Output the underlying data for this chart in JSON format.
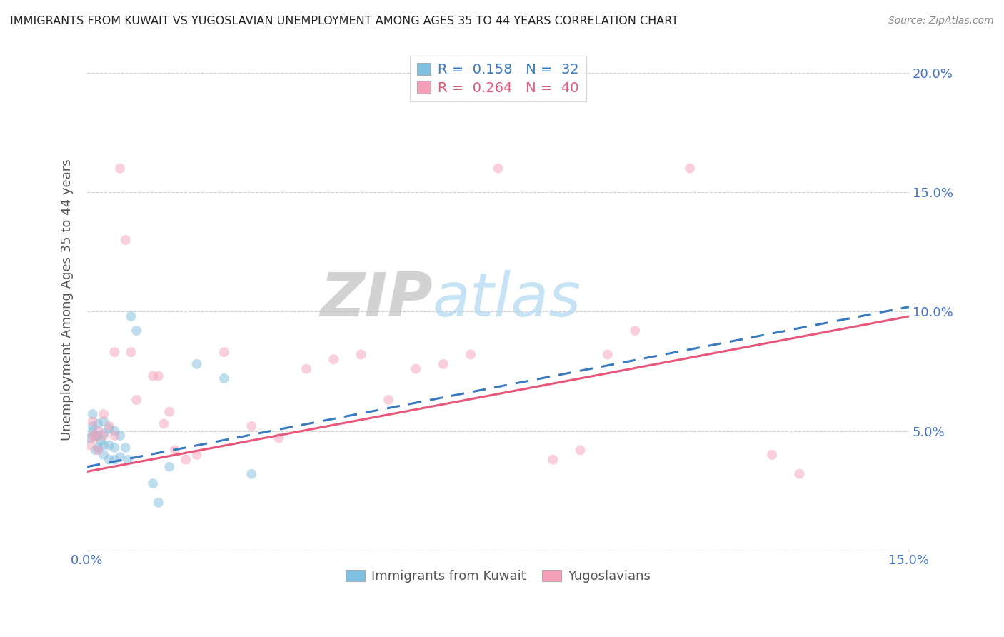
{
  "title": "IMMIGRANTS FROM KUWAIT VS YUGOSLAVIAN UNEMPLOYMENT AMONG AGES 35 TO 44 YEARS CORRELATION CHART",
  "source": "Source: ZipAtlas.com",
  "ylabel": "Unemployment Among Ages 35 to 44 years",
  "xlim": [
    0,
    0.15
  ],
  "ylim": [
    0,
    0.21
  ],
  "xticks": [
    0.0,
    0.025,
    0.05,
    0.075,
    0.1,
    0.125,
    0.15
  ],
  "yticks": [
    0.0,
    0.05,
    0.1,
    0.15,
    0.2
  ],
  "legend_r1": "R =  0.158",
  "legend_n1": "N =  32",
  "legend_r2": "R =  0.264",
  "legend_n2": "N =  40",
  "blue_color": "#7fbfdf",
  "pink_color": "#f4a0b8",
  "blue_line_color": "#3a7abf",
  "pink_line_color": "#e8567a",
  "watermark_zip": "ZIP",
  "watermark_atlas": "atlas",
  "scatter_blue_x": [
    0.0005,
    0.001,
    0.001,
    0.001,
    0.0015,
    0.0015,
    0.002,
    0.002,
    0.002,
    0.0025,
    0.003,
    0.003,
    0.003,
    0.003,
    0.004,
    0.004,
    0.004,
    0.005,
    0.005,
    0.005,
    0.006,
    0.006,
    0.007,
    0.0075,
    0.008,
    0.009,
    0.012,
    0.013,
    0.015,
    0.02,
    0.025,
    0.03
  ],
  "scatter_blue_y": [
    0.047,
    0.05,
    0.052,
    0.057,
    0.042,
    0.048,
    0.043,
    0.048,
    0.053,
    0.046,
    0.04,
    0.044,
    0.049,
    0.054,
    0.038,
    0.044,
    0.051,
    0.038,
    0.043,
    0.05,
    0.039,
    0.048,
    0.043,
    0.038,
    0.098,
    0.092,
    0.028,
    0.02,
    0.035,
    0.078,
    0.072,
    0.032
  ],
  "scatter_pink_x": [
    0.0005,
    0.001,
    0.001,
    0.0015,
    0.002,
    0.002,
    0.003,
    0.003,
    0.004,
    0.005,
    0.005,
    0.006,
    0.007,
    0.008,
    0.009,
    0.012,
    0.013,
    0.014,
    0.015,
    0.016,
    0.018,
    0.02,
    0.025,
    0.03,
    0.035,
    0.04,
    0.045,
    0.05,
    0.055,
    0.06,
    0.065,
    0.07,
    0.075,
    0.085,
    0.09,
    0.095,
    0.1,
    0.11,
    0.125,
    0.13
  ],
  "scatter_pink_y": [
    0.044,
    0.048,
    0.054,
    0.047,
    0.042,
    0.05,
    0.048,
    0.057,
    0.052,
    0.048,
    0.083,
    0.16,
    0.13,
    0.083,
    0.063,
    0.073,
    0.073,
    0.053,
    0.058,
    0.042,
    0.038,
    0.04,
    0.083,
    0.052,
    0.047,
    0.076,
    0.08,
    0.082,
    0.063,
    0.076,
    0.078,
    0.082,
    0.16,
    0.038,
    0.042,
    0.082,
    0.092,
    0.16,
    0.04,
    0.032
  ],
  "blue_trend_x": [
    0.0,
    0.15
  ],
  "blue_trend_y": [
    0.035,
    0.102
  ],
  "pink_trend_x": [
    0.0,
    0.15
  ],
  "pink_trend_y": [
    0.033,
    0.098
  ],
  "background_color": "#ffffff",
  "grid_color": "#d0d0d0",
  "marker_size": 100,
  "marker_alpha": 0.5
}
